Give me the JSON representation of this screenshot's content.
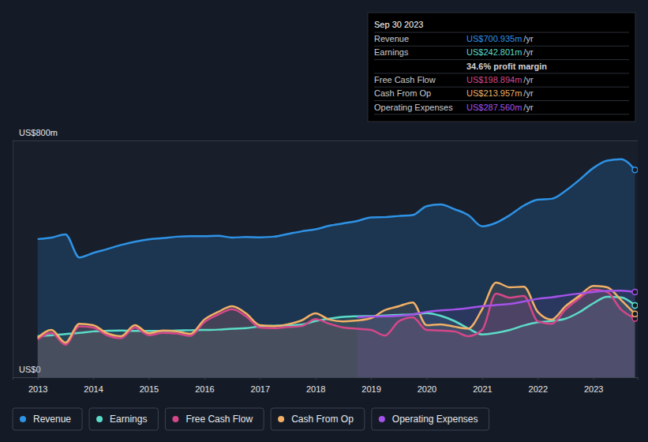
{
  "chart_data": {
    "type": "area",
    "x": [
      2013,
      2013.25,
      2013.5,
      2013.75,
      2014,
      2014.25,
      2014.5,
      2014.75,
      2015,
      2015.25,
      2015.5,
      2015.75,
      2016,
      2016.25,
      2016.5,
      2016.75,
      2017,
      2017.25,
      2017.5,
      2017.75,
      2018,
      2018.25,
      2018.5,
      2018.75,
      2019,
      2019.25,
      2019.5,
      2019.75,
      2020,
      2020.25,
      2020.5,
      2020.75,
      2021,
      2021.25,
      2021.5,
      2021.75,
      2022,
      2022.25,
      2022.5,
      2022.75,
      2023,
      2023.25,
      2023.5,
      2023.75
    ],
    "series": [
      {
        "name": "Revenue",
        "color": "#2e93e6",
        "values": [
          467,
          472,
          483,
          405,
          420,
          433,
          447,
          458,
          466,
          470,
          475,
          477,
          477,
          478,
          472,
          474,
          473,
          475,
          484,
          493,
          500,
          512,
          520,
          528,
          540,
          541,
          545,
          548,
          578,
          584,
          568,
          548,
          510,
          522,
          548,
          580,
          600,
          603,
          630,
          667,
          707,
          732,
          737,
          701
        ]
      },
      {
        "name": "Earnings",
        "color": "#5cdcc8",
        "values": [
          139,
          142,
          146,
          150,
          155,
          157,
          158,
          157,
          157,
          157,
          158,
          159,
          160,
          161,
          164,
          166,
          172,
          174,
          175,
          178,
          190,
          198,
          204,
          206,
          207,
          209,
          211,
          213,
          217,
          208,
          190,
          165,
          145,
          150,
          160,
          175,
          186,
          190,
          198,
          220,
          250,
          272,
          270,
          243
        ]
      },
      {
        "name": "Free Cash Flow",
        "color": "#d5478a",
        "values": [
          128,
          150,
          110,
          172,
          168,
          142,
          132,
          168,
          142,
          150,
          148,
          140,
          186,
          212,
          230,
          206,
          168,
          166,
          170,
          173,
          197,
          181,
          168,
          164,
          160,
          141,
          189,
          203,
          160,
          158,
          155,
          139,
          160,
          283,
          269,
          275,
          189,
          181,
          229,
          267,
          296,
          288,
          229,
          199
        ]
      },
      {
        "name": "Cash From Op",
        "color": "#f2b066",
        "values": [
          133,
          160,
          117,
          181,
          176,
          149,
          139,
          176,
          149,
          158,
          155,
          147,
          195,
          221,
          240,
          216,
          176,
          173,
          179,
          192,
          216,
          195,
          189,
          192,
          200,
          227,
          240,
          253,
          176,
          179,
          171,
          165,
          230,
          320,
          304,
          306,
          221,
          195,
          240,
          275,
          309,
          304,
          261,
          214
        ]
      },
      {
        "name": "Operating Expenses",
        "color": "#a552ea",
        "values": [
          null,
          null,
          null,
          null,
          null,
          null,
          null,
          null,
          null,
          null,
          null,
          null,
          null,
          null,
          null,
          null,
          null,
          null,
          null,
          null,
          null,
          null,
          null,
          203,
          205,
          206,
          208,
          212,
          221,
          226,
          229,
          234,
          240,
          244,
          248,
          256,
          265,
          270,
          277,
          283,
          288,
          292,
          293,
          288
        ]
      }
    ],
    "xlim": [
      2012.55,
      2023.8
    ],
    "xticks": [
      2013,
      2014,
      2015,
      2016,
      2017,
      2018,
      2019,
      2020,
      2021,
      2022,
      2023
    ],
    "ylim": [
      0,
      800
    ],
    "yticks": [
      {
        "value": 0,
        "label": "US$0"
      },
      {
        "value": 800,
        "label": "US$800m"
      }
    ],
    "grid": true,
    "legend": "bottom",
    "annotations": {
      "title": "Sep 30 2023",
      "rows": [
        {
          "label": "Revenue",
          "value": "US$700.935m",
          "unit": "/yr"
        },
        {
          "label": "Earnings",
          "value": "US$242.801m",
          "unit": "/yr"
        },
        {
          "value": "34.6% profit margin"
        },
        {
          "label": "Free Cash Flow",
          "value": "US$198.894m",
          "unit": "/yr"
        },
        {
          "label": "Cash From Op",
          "value": "US$213.957m",
          "unit": "/yr"
        },
        {
          "label": "Operating Expenses",
          "value": "US$287.560m",
          "unit": "/yr"
        }
      ]
    }
  }
}
